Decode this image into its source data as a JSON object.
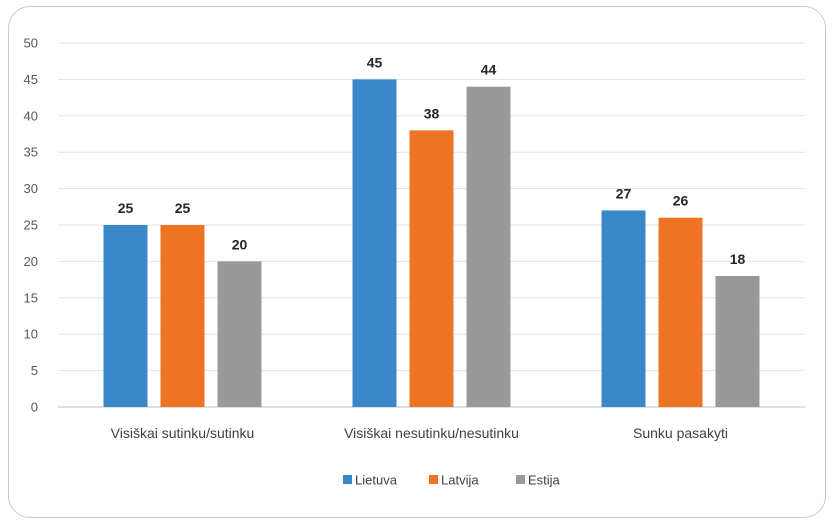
{
  "chart_data": {
    "type": "bar",
    "title": "",
    "xlabel": "",
    "ylabel": "",
    "ylim": [
      0,
      50
    ],
    "yticks": [
      0,
      5,
      10,
      15,
      20,
      25,
      30,
      35,
      40,
      45,
      50
    ],
    "grid": true,
    "legend_position": "bottom",
    "categories": [
      "Visiškai sutinku/sutinku",
      "Visiškai nesutinku/nesutinku",
      "Sunku pasakyti"
    ],
    "series": [
      {
        "name": "Lietuva",
        "color": "#3a87c9",
        "values": [
          25,
          45,
          27
        ]
      },
      {
        "name": "Latvija",
        "color": "#ee7424",
        "values": [
          25,
          38,
          26
        ]
      },
      {
        "name": "Estija",
        "color": "#999999",
        "values": [
          20,
          44,
          18
        ]
      }
    ]
  }
}
